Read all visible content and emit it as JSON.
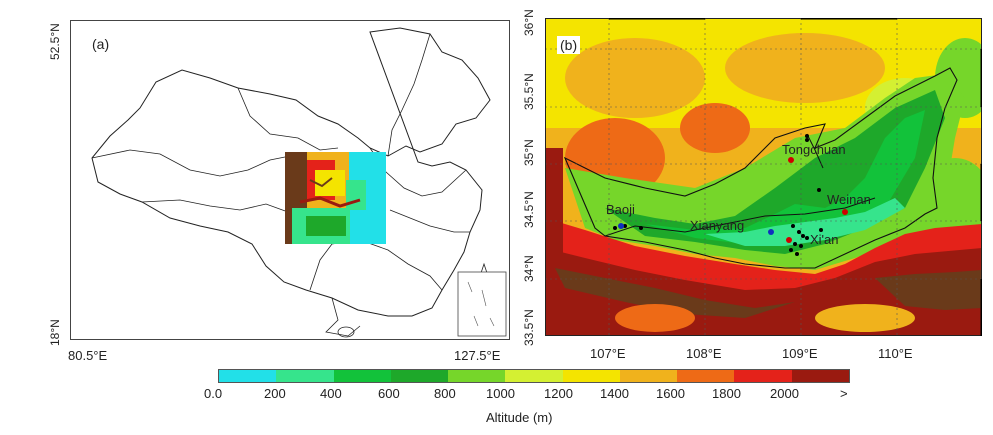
{
  "panel_a": {
    "label": "(a)",
    "lat_top": "52.5°N",
    "lat_bottom": "18°N",
    "lon_left": "80.5°E",
    "lon_right": "127.5°E"
  },
  "panel_b": {
    "label": "(b)",
    "lat_ticks": [
      "36°N",
      "35.5°N",
      "35°N",
      "34.5°N",
      "34°N",
      "33.5°N"
    ],
    "lon_ticks": [
      "107°E",
      "108°E",
      "109°E",
      "110°E"
    ],
    "cities": [
      {
        "name": "Tongchuan",
        "color": "#d00000"
      },
      {
        "name": "Weinan",
        "color": "#d00000"
      },
      {
        "name": "Baoji",
        "color": "#1030c0"
      },
      {
        "name": "Xianyang",
        "color": "#1030c0"
      },
      {
        "name": "Xi'an",
        "color": "#d00000"
      }
    ]
  },
  "colorbar": {
    "title": "Altitude (m)",
    "ticks": [
      "0.0",
      "200",
      "400",
      "600",
      "800",
      "1000",
      "1200",
      "1400",
      "1600",
      "1800",
      "2000",
      ">"
    ],
    "colors": [
      "#22e0e8",
      "#36e48c",
      "#12c23a",
      "#1ea82a",
      "#76d62a",
      "#d4f032",
      "#f4e400",
      "#f0b21c",
      "#ee6a16",
      "#e4221a",
      "#9a1a10",
      "#6a3a1a"
    ]
  }
}
